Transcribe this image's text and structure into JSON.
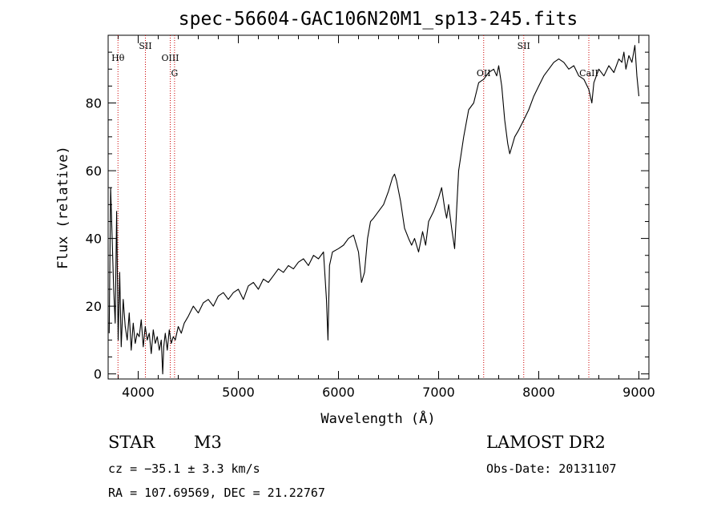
{
  "chart_data": {
    "type": "line",
    "title": "spec-56604-GAC106N20M1_sp13-245.fits",
    "xlabel": "Wavelength (Å)",
    "ylabel": "Flux (relative)",
    "xlim": [
      3700,
      9100
    ],
    "ylim": [
      -1.5,
      100
    ],
    "x_ticks": [
      4000,
      5000,
      6000,
      7000,
      8000,
      9000
    ],
    "y_ticks": [
      0,
      20,
      40,
      60,
      80
    ],
    "grid": false,
    "line_color": "#000000",
    "marker_color": "#cc0000",
    "line_markers": [
      {
        "label": "Hθ",
        "x": 3798,
        "row": 1
      },
      {
        "label": "SII",
        "x": 4072,
        "row": 0
      },
      {
        "label": "OIII",
        "x": 4320,
        "row": 1
      },
      {
        "label": "G",
        "x": 4363,
        "row": 2
      },
      {
        "label": "OII",
        "x": 7450,
        "row": 2
      },
      {
        "label": "SII",
        "x": 7850,
        "row": 0
      },
      {
        "label": "CaII",
        "x": 8500,
        "row": 2
      }
    ],
    "series": [
      {
        "x": [
          3710,
          3725,
          3740,
          3755,
          3770,
          3785,
          3800,
          3815,
          3830,
          3850,
          3870,
          3890,
          3910,
          3930,
          3950,
          3970,
          3990,
          4010,
          4030,
          4050,
          4070,
          4090,
          4110,
          4130,
          4150,
          4170,
          4190,
          4210,
          4230,
          4245,
          4255,
          4270,
          4290,
          4310,
          4330,
          4350,
          4370,
          4400,
          4430,
          4460,
          4500,
          4550,
          4600,
          4650,
          4700,
          4750,
          4800,
          4850,
          4900,
          4950,
          5000,
          5050,
          5100,
          5150,
          5200,
          5250,
          5300,
          5350,
          5400,
          5450,
          5500,
          5550,
          5600,
          5650,
          5700,
          5750,
          5800,
          5850,
          5880,
          5895,
          5910,
          5940,
          6000,
          6050,
          6100,
          6150,
          6200,
          6230,
          6260,
          6290,
          6320,
          6350,
          6400,
          6450,
          6500,
          6540,
          6560,
          6580,
          6620,
          6660,
          6700,
          6730,
          6760,
          6800,
          6840,
          6870,
          6900,
          6950,
          7000,
          7030,
          7060,
          7080,
          7100,
          7130,
          7160,
          7200,
          7250,
          7300,
          7350,
          7400,
          7450,
          7500,
          7550,
          7580,
          7600,
          7630,
          7660,
          7690,
          7710,
          7730,
          7760,
          7800,
          7850,
          7900,
          7950,
          8000,
          8050,
          8100,
          8150,
          8200,
          8250,
          8300,
          8350,
          8400,
          8450,
          8500,
          8530,
          8550,
          8600,
          8650,
          8700,
          8750,
          8800,
          8830,
          8850,
          8870,
          8900,
          8930,
          8960,
          8980,
          9000
        ],
        "y": [
          12,
          55,
          40,
          25,
          15,
          48,
          10,
          30,
          8,
          22,
          14,
          10,
          18,
          7,
          15,
          9,
          12,
          11,
          16,
          8,
          14,
          10,
          12,
          6,
          13,
          9,
          11,
          7,
          10,
          0,
          8,
          12,
          7,
          13,
          9,
          11,
          10,
          14,
          12,
          15,
          17,
          20,
          18,
          21,
          22,
          20,
          23,
          24,
          22,
          24,
          25,
          22,
          26,
          27,
          25,
          28,
          27,
          29,
          31,
          30,
          32,
          31,
          33,
          34,
          32,
          35,
          34,
          36,
          22,
          10,
          32,
          36,
          37,
          38,
          40,
          41,
          36,
          27,
          30,
          40,
          45,
          46,
          48,
          50,
          54,
          58,
          59,
          57,
          51,
          43,
          40,
          38,
          40,
          36,
          42,
          38,
          45,
          48,
          52,
          55,
          49,
          46,
          50,
          43,
          37,
          60,
          70,
          78,
          80,
          86,
          87,
          89,
          90,
          88,
          91,
          85,
          75,
          68,
          65,
          67,
          70,
          72,
          75,
          78,
          82,
          85,
          88,
          90,
          92,
          93,
          92,
          90,
          91,
          88,
          87,
          84,
          80,
          86,
          90,
          88,
          91,
          89,
          93,
          92,
          95,
          90,
          94,
          92,
          97,
          88,
          82
        ]
      }
    ]
  },
  "info": {
    "class": "STAR",
    "subclass": "M3",
    "survey": "LAMOST DR2",
    "cz": "cz = −35.1 ± 3.3 km/s",
    "obs_date": "Obs-Date: 20131107",
    "coords": "RA = 107.69569, DEC =  21.22767"
  }
}
